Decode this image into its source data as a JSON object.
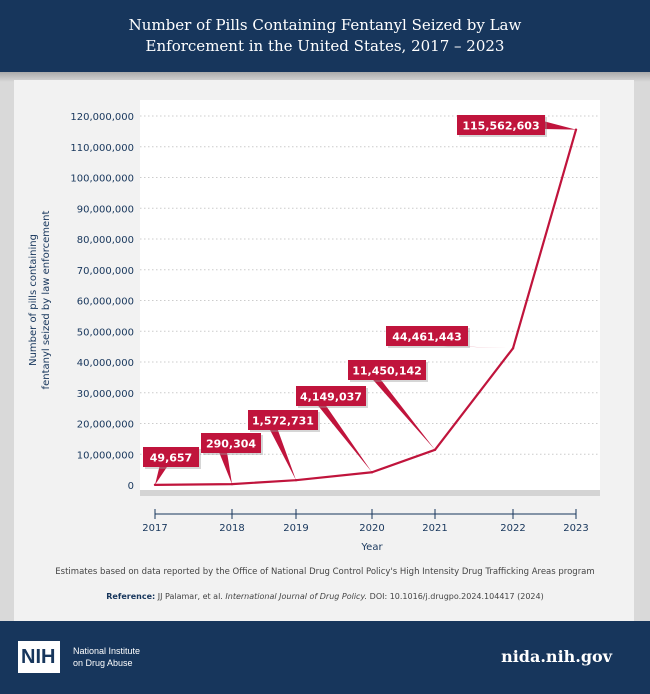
{
  "header": {
    "title": "Number of Pills Containing Fentanyl Seized by Law Enforcement in the United States, 2017 – 2023"
  },
  "chart_data": {
    "type": "line",
    "title": "Number of Pills Containing Fentanyl Seized by Law Enforcement in the United States, 2017 – 2023",
    "xlabel": "Year",
    "ylabel": "Number of pills containing fentanyl seized by law enforcement",
    "ylim": [
      0,
      120000000
    ],
    "yticks": [
      "0",
      "10,000,000",
      "20,000,000",
      "30,000,000",
      "40,000,000",
      "50,000,000",
      "60,000,000",
      "70,000,000",
      "80,000,000",
      "90,000,000",
      "100,000,000",
      "110,000,000",
      "120,000,000"
    ],
    "categories": [
      "2017",
      "2018",
      "2019",
      "2020",
      "2021",
      "2022",
      "2023"
    ],
    "values": [
      49657,
      290304,
      1572731,
      4149037,
      11450142,
      44461443,
      115562603
    ],
    "data_labels": [
      "49,657",
      "290,304",
      "1,572,731",
      "4,149,037",
      "11,450,142",
      "44,461,443",
      "115,562,603"
    ],
    "grid": true,
    "colors": {
      "line": "#c0143c",
      "axis": "#17365c"
    }
  },
  "notes": {
    "source": "Estimates based on data reported by the Office of National Drug Control Policy's High Intensity Drug Trafficking Areas program",
    "reference_label": "Reference:",
    "reference_authors": "JJ Palamar, et al.",
    "reference_journal": "International Journal of Drug Policy.",
    "reference_doi": "DOI: 10.1016/j.drugpo.2024.104417 (2024)"
  },
  "footer": {
    "logo_text": "NIH",
    "org_line1": "National Institute",
    "org_line2": "on Drug Abuse",
    "site": "nida.nih.gov"
  }
}
